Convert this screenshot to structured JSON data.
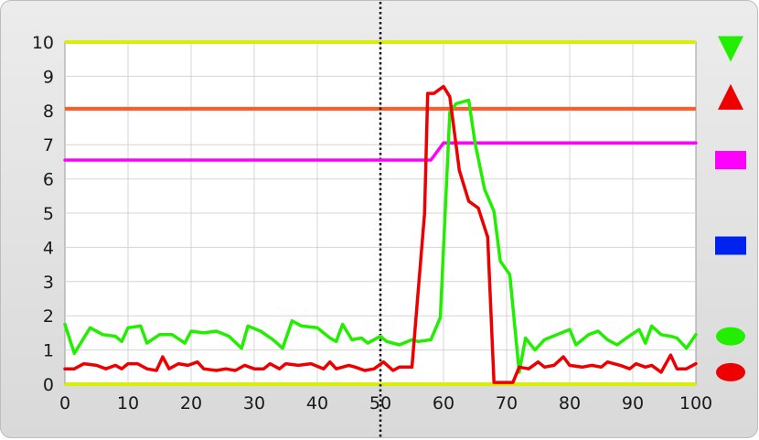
{
  "chart_data": {
    "type": "line",
    "title": "",
    "xlabel": "",
    "ylabel": "",
    "xlim": [
      0,
      100
    ],
    "ylim": [
      0,
      10
    ],
    "x_ticks": [
      "0",
      "10",
      "20",
      "30",
      "40",
      "50",
      "60",
      "70",
      "80",
      "90",
      "100"
    ],
    "y_ticks": [
      "0",
      "1",
      "2",
      "3",
      "4",
      "5",
      "6",
      "7",
      "8",
      "9",
      "10"
    ],
    "grid": true,
    "cursor_x": 50,
    "reference_lines": [
      {
        "y": 10,
        "color": "#d8f000"
      },
      {
        "y": 0,
        "color": "#d8f000"
      },
      {
        "y": 8.05,
        "color": "#ff5a28"
      }
    ],
    "series": [
      {
        "color": "#ff00ff",
        "points": [
          [
            0,
            6.55
          ],
          [
            58,
            6.55
          ],
          [
            60,
            7.05
          ],
          [
            100,
            7.05
          ]
        ]
      },
      {
        "color": "#22ee00",
        "points": [
          [
            0,
            1.75
          ],
          [
            1.5,
            0.9
          ],
          [
            4,
            1.65
          ],
          [
            6,
            1.45
          ],
          [
            8,
            1.4
          ],
          [
            9,
            1.25
          ],
          [
            10,
            1.65
          ],
          [
            12,
            1.7
          ],
          [
            13,
            1.2
          ],
          [
            15,
            1.45
          ],
          [
            17,
            1.45
          ],
          [
            19,
            1.2
          ],
          [
            20,
            1.55
          ],
          [
            22,
            1.5
          ],
          [
            24,
            1.55
          ],
          [
            26,
            1.4
          ],
          [
            28,
            1.05
          ],
          [
            29,
            1.7
          ],
          [
            31,
            1.55
          ],
          [
            33,
            1.3
          ],
          [
            34.5,
            1.05
          ],
          [
            36,
            1.85
          ],
          [
            37.5,
            1.7
          ],
          [
            40,
            1.65
          ],
          [
            42,
            1.35
          ],
          [
            43,
            1.25
          ],
          [
            44,
            1.75
          ],
          [
            45.5,
            1.3
          ],
          [
            47,
            1.35
          ],
          [
            48,
            1.2
          ],
          [
            50,
            1.4
          ],
          [
            51,
            1.25
          ],
          [
            53,
            1.15
          ],
          [
            55,
            1.3
          ],
          [
            56,
            1.25
          ],
          [
            58,
            1.3
          ],
          [
            59.5,
            1.95
          ],
          [
            61,
            7.95
          ],
          [
            62,
            8.2
          ],
          [
            64,
            8.3
          ],
          [
            65,
            7.05
          ],
          [
            66.5,
            5.7
          ],
          [
            68,
            5.05
          ],
          [
            69,
            3.6
          ],
          [
            70.5,
            3.2
          ],
          [
            72,
            0.35
          ],
          [
            73,
            1.35
          ],
          [
            74.5,
            1.0
          ],
          [
            76,
            1.3
          ],
          [
            78,
            1.45
          ],
          [
            80,
            1.6
          ],
          [
            81,
            1.15
          ],
          [
            83,
            1.45
          ],
          [
            84.5,
            1.55
          ],
          [
            86,
            1.3
          ],
          [
            87.5,
            1.15
          ],
          [
            89,
            1.35
          ],
          [
            91,
            1.6
          ],
          [
            92,
            1.2
          ],
          [
            93,
            1.7
          ],
          [
            94.5,
            1.45
          ],
          [
            96,
            1.4
          ],
          [
            97,
            1.35
          ],
          [
            98.5,
            1.05
          ],
          [
            100,
            1.45
          ]
        ]
      },
      {
        "color": "#ee0000",
        "points": [
          [
            0,
            0.45
          ],
          [
            1.5,
            0.45
          ],
          [
            3,
            0.6
          ],
          [
            5,
            0.55
          ],
          [
            6.5,
            0.45
          ],
          [
            8,
            0.55
          ],
          [
            9,
            0.45
          ],
          [
            10,
            0.6
          ],
          [
            11.5,
            0.6
          ],
          [
            13,
            0.45
          ],
          [
            14.5,
            0.4
          ],
          [
            15.5,
            0.8
          ],
          [
            16.5,
            0.45
          ],
          [
            18,
            0.6
          ],
          [
            19.5,
            0.55
          ],
          [
            21,
            0.65
          ],
          [
            22,
            0.45
          ],
          [
            24,
            0.4
          ],
          [
            25.5,
            0.45
          ],
          [
            27,
            0.4
          ],
          [
            28.5,
            0.55
          ],
          [
            30,
            0.45
          ],
          [
            31.5,
            0.45
          ],
          [
            32.5,
            0.6
          ],
          [
            34,
            0.45
          ],
          [
            35,
            0.6
          ],
          [
            37,
            0.55
          ],
          [
            39,
            0.6
          ],
          [
            41,
            0.45
          ],
          [
            42,
            0.65
          ],
          [
            43,
            0.45
          ],
          [
            45,
            0.55
          ],
          [
            46,
            0.5
          ],
          [
            47.5,
            0.4
          ],
          [
            49,
            0.45
          ],
          [
            50.5,
            0.65
          ],
          [
            52,
            0.4
          ],
          [
            53,
            0.5
          ],
          [
            55,
            0.5
          ],
          [
            57,
            5.0
          ],
          [
            57.5,
            8.5
          ],
          [
            58.5,
            8.5
          ],
          [
            60,
            8.7
          ],
          [
            61,
            8.4
          ],
          [
            62.5,
            6.25
          ],
          [
            64,
            5.35
          ],
          [
            65.5,
            5.15
          ],
          [
            67,
            4.3
          ],
          [
            68,
            0.05
          ],
          [
            69,
            0.05
          ],
          [
            71,
            0.05
          ],
          [
            72,
            0.5
          ],
          [
            73.5,
            0.45
          ],
          [
            75,
            0.65
          ],
          [
            76,
            0.5
          ],
          [
            77.5,
            0.55
          ],
          [
            79,
            0.8
          ],
          [
            80,
            0.55
          ],
          [
            82,
            0.5
          ],
          [
            83.5,
            0.55
          ],
          [
            85,
            0.5
          ],
          [
            86,
            0.65
          ],
          [
            88,
            0.55
          ],
          [
            89.5,
            0.45
          ],
          [
            90.5,
            0.6
          ],
          [
            92,
            0.5
          ],
          [
            93,
            0.55
          ],
          [
            94.5,
            0.35
          ],
          [
            96,
            0.85
          ],
          [
            97,
            0.45
          ],
          [
            98.5,
            0.45
          ],
          [
            100,
            0.6
          ]
        ]
      }
    ],
    "legend": {
      "placement": "right",
      "markers": [
        {
          "shape": "triangle-down",
          "color": "#22ee00",
          "y": 9.8
        },
        {
          "shape": "triangle-up",
          "color": "#ee0000",
          "y": 8.4
        },
        {
          "shape": "square",
          "color": "#ff00ff",
          "y": 6.55
        },
        {
          "shape": "square",
          "color": "#0022ee",
          "y": 4.05
        },
        {
          "shape": "circle",
          "color": "#22ee00",
          "y": 1.4
        },
        {
          "shape": "circle",
          "color": "#ee0000",
          "y": 0.35
        }
      ]
    }
  }
}
